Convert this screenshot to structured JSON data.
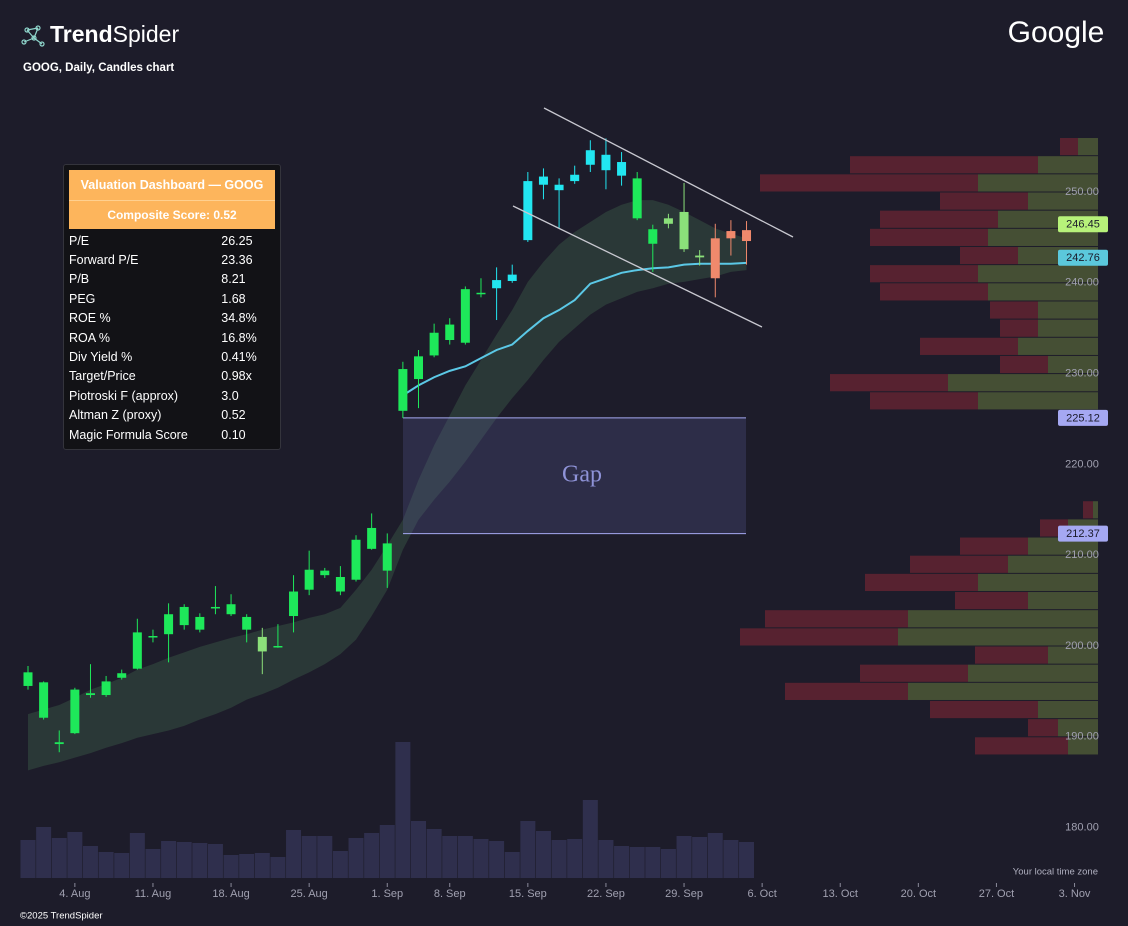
{
  "header": {
    "brand_bold": "Trend",
    "brand_light": "Spider",
    "chart_label": "GOOG, Daily, Candles chart",
    "logo": "Google",
    "copyright": "©2025 TrendSpider",
    "timezone_note": "Your local time zone"
  },
  "dashboard": {
    "title": "Valuation Dashboard — GOOG",
    "subtitle": "Composite Score: 0.52",
    "rows": [
      [
        "P/E",
        "26.25"
      ],
      [
        "Forward P/E",
        "23.36"
      ],
      [
        "P/B",
        "8.21"
      ],
      [
        "PEG",
        "1.68"
      ],
      [
        "ROE %",
        "34.8%"
      ],
      [
        "ROA %",
        "16.8%"
      ],
      [
        "Div Yield %",
        "0.41%"
      ],
      [
        "Target/Price",
        "0.98x"
      ],
      [
        "Piotroski F (approx)",
        "3.0"
      ],
      [
        "Altman Z (proxy)",
        "0.52"
      ],
      [
        "Magic Formula Score",
        "0.10"
      ]
    ]
  },
  "chart_data": {
    "type": "candlestick",
    "categories": [
      null,
      null,
      null,
      "4. Aug",
      null,
      null,
      null,
      null,
      "11. Aug",
      null,
      null,
      null,
      null,
      "18. Aug",
      null,
      null,
      null,
      null,
      "25. Aug",
      null,
      null,
      null,
      null,
      "1. Sep",
      null,
      null,
      null,
      "8. Sep",
      null,
      null,
      null,
      null,
      "15. Sep",
      null,
      null,
      null,
      null,
      "22. Sep",
      null,
      null,
      null,
      null,
      "29. Sep",
      null,
      null,
      null,
      null,
      "6. Oct",
      null,
      null,
      null,
      null,
      "13. Oct",
      null,
      null,
      null,
      null,
      "20. Oct",
      null,
      null,
      null,
      null,
      "27. Oct",
      null,
      null,
      null,
      null,
      "3. Nov"
    ],
    "open": [
      195.6,
      196.0,
      189.4,
      190.4,
      194.6,
      194.6,
      196.5,
      197.5,
      201.0,
      201.3,
      202.3,
      203.2,
      204.2,
      203.5,
      203.2,
      199.4,
      199.9,
      203.3,
      206.2,
      207.8,
      206.0,
      207.3,
      210.7,
      208.3,
      225.9,
      229.4,
      232.0,
      233.7,
      233.4,
      238.8,
      239.4,
      240.2,
      244.7,
      250.8,
      250.2,
      251.2,
      253.0,
      254.1,
      253.3,
      251.5,
      244.3,
      246.5,
      243.7,
      242.8,
      244.9,
      245.7,
      245.8,
      null,
      null,
      null,
      null,
      null,
      null,
      null,
      null,
      null,
      null,
      null,
      null,
      null,
      null,
      null,
      null,
      null,
      null,
      null,
      null,
      null
    ],
    "high": [
      197.8,
      196.1,
      190.7,
      195.4,
      198.0,
      196.7,
      197.4,
      203.0,
      201.8,
      204.7,
      204.6,
      203.6,
      206.6,
      205.7,
      203.5,
      202.0,
      202.4,
      207.8,
      210.5,
      208.6,
      208.8,
      212.2,
      214.6,
      212.4,
      231.3,
      232.6,
      235.5,
      236.1,
      239.6,
      240.5,
      241.7,
      242.0,
      252.2,
      252.6,
      251.5,
      252.9,
      255.7,
      255.9,
      254.4,
      252.2,
      246.4,
      247.6,
      251.0,
      243.6,
      246.5,
      246.9,
      246.8,
      null,
      null,
      null,
      null,
      null,
      null,
      null,
      null,
      null,
      null,
      null,
      null,
      null,
      null,
      null,
      null,
      null,
      null,
      null,
      null,
      null
    ],
    "low": [
      195.2,
      191.9,
      188.3,
      190.3,
      194.3,
      194.4,
      196.3,
      197.4,
      200.4,
      198.2,
      201.8,
      201.5,
      203.5,
      203.3,
      200.4,
      196.9,
      199.8,
      201.5,
      205.6,
      207.5,
      205.6,
      207.1,
      210.6,
      206.4,
      225.1,
      226.2,
      231.8,
      233.2,
      233.2,
      238.4,
      235.9,
      240.0,
      244.5,
      249.2,
      246.0,
      250.9,
      252.2,
      250.3,
      250.7,
      246.9,
      241.2,
      246.0,
      243.4,
      241.9,
      238.4,
      243.0,
      242.0,
      null,
      null,
      null,
      null,
      null,
      null,
      null,
      null,
      null,
      null,
      null,
      null,
      null,
      null,
      null,
      null,
      null,
      null,
      null,
      null,
      null
    ],
    "close": [
      197.1,
      192.1,
      189.2,
      195.2,
      194.8,
      196.1,
      197.0,
      201.5,
      201.1,
      203.5,
      204.3,
      201.8,
      204.3,
      204.6,
      201.8,
      201.0,
      200.0,
      206.0,
      208.4,
      208.3,
      207.6,
      211.7,
      213.0,
      211.3,
      230.5,
      231.9,
      234.5,
      235.4,
      239.3,
      238.9,
      240.3,
      240.9,
      251.2,
      251.7,
      250.8,
      251.9,
      254.6,
      252.4,
      251.8,
      247.1,
      245.9,
      247.1,
      247.8,
      243.0,
      240.5,
      244.9,
      244.6,
      null,
      null,
      null,
      null,
      null,
      null,
      null,
      null,
      null,
      null,
      null,
      null,
      null,
      null,
      null,
      null,
      null,
      null,
      null,
      null,
      null
    ],
    "colors": [
      "#1ee85a",
      "#1ee85a",
      "#1ee85a",
      "#1ee85a",
      "#1ee85a",
      "#1ee85a",
      "#1ee85a",
      "#1ee85a",
      "#1ee85a",
      "#1ee85a",
      "#1ee85a",
      "#1ee85a",
      "#1ee85a",
      "#1ee85a",
      "#1ee85a",
      "#8be07a",
      "#1ee85a",
      "#1ee85a",
      "#1ee85a",
      "#1ee85a",
      "#1ee85a",
      "#1ee85a",
      "#1ee85a",
      "#1ee85a",
      "#1ee85a",
      "#1ee85a",
      "#1ee85a",
      "#1ee85a",
      "#1ee85a",
      "#1ee85a",
      "#22e6f0",
      "#22e6f0",
      "#22e6f0",
      "#22e6f0",
      "#22e6f0",
      "#22e6f0",
      "#22e6f0",
      "#22e6f0",
      "#22e6f0",
      "#1ee85a",
      "#1ee85a",
      "#8be07a",
      "#8be07a",
      "#8be07a",
      "#f0896c",
      "#f0896c",
      "#f0896c",
      null,
      null,
      null,
      null,
      null,
      null,
      null,
      null,
      null,
      null,
      null,
      null,
      null,
      null,
      null,
      null,
      null,
      null,
      null,
      null,
      null
    ],
    "volume": [
      38,
      51,
      40,
      46,
      32,
      26,
      25,
      45,
      29,
      37,
      36,
      35,
      34,
      23,
      24,
      25,
      21,
      48,
      42,
      42,
      27,
      40,
      45,
      53,
      136,
      57,
      49,
      42,
      42,
      39,
      37,
      26,
      57,
      47,
      38,
      39,
      78,
      38,
      32,
      31,
      31,
      29,
      42,
      41,
      45,
      38,
      36,
      null,
      null,
      null,
      null,
      null,
      null,
      null,
      null,
      null,
      null,
      null,
      null,
      null,
      null,
      null,
      null,
      null,
      null,
      null,
      null,
      null
    ],
    "volume_color": "#2f2f4d",
    "vlim": [
      0,
      150
    ],
    "ma": [
      null,
      null,
      null,
      null,
      null,
      null,
      null,
      null,
      null,
      null,
      null,
      null,
      null,
      null,
      null,
      null,
      null,
      null,
      null,
      null,
      null,
      null,
      null,
      null,
      227.6,
      228.7,
      229.6,
      230.3,
      230.8,
      231.7,
      232.6,
      233.2,
      234.7,
      236.1,
      237.0,
      238.1,
      239.9,
      240.5,
      241.1,
      241.4,
      241.6,
      241.7,
      242.0,
      242.1,
      242.1,
      242.1,
      242.2,
      null,
      null,
      null,
      null,
      null,
      null,
      null,
      null,
      null,
      null,
      null,
      null,
      null,
      null,
      null,
      null,
      null,
      null,
      null,
      null,
      null
    ],
    "ma_color": "#5bc8e6",
    "band_upper": [
      192.5,
      193.0,
      193.5,
      194.3,
      195.2,
      195.8,
      196.5,
      197.4,
      198.0,
      198.7,
      199.3,
      199.9,
      200.4,
      200.9,
      201.3,
      201.8,
      202.2,
      202.6,
      203.1,
      203.5,
      204.2,
      206.2,
      208.4,
      211.1,
      213.9,
      218.3,
      222.1,
      225.4,
      228.7,
      231.5,
      234.3,
      237.0,
      240.1,
      242.3,
      244.2,
      245.6,
      246.7,
      247.8,
      248.6,
      249.1,
      249.1,
      248.6,
      247.8,
      246.9,
      246.0,
      245.4,
      244.9,
      null,
      null,
      null,
      null,
      null,
      null,
      null,
      null,
      null,
      null,
      null,
      null,
      null,
      null,
      null,
      null,
      null,
      null,
      null,
      null,
      null
    ],
    "band_lower": [
      186.3,
      186.8,
      187.2,
      187.7,
      188.2,
      188.8,
      189.3,
      189.9,
      190.3,
      190.7,
      191.2,
      191.9,
      192.5,
      193.2,
      194.1,
      194.7,
      195.4,
      196.3,
      197.1,
      198.0,
      199.1,
      200.7,
      203.3,
      206.2,
      210.6,
      213.9,
      216.1,
      218.1,
      220.3,
      222.7,
      225.1,
      227.3,
      229.3,
      231.5,
      233.5,
      235.0,
      236.5,
      237.6,
      238.3,
      239.0,
      239.4,
      239.9,
      240.1,
      240.4,
      240.7,
      241.2,
      241.4,
      null,
      null,
      null,
      null,
      null,
      null,
      null,
      null,
      null,
      null,
      null,
      null,
      null,
      null,
      null,
      null,
      null,
      null,
      null,
      null,
      null
    ],
    "band_color": "#3c5a48",
    "ylim": [
      175,
      260
    ],
    "yticks": [
      {
        "value": 180,
        "label": "180.00"
      },
      {
        "value": 190,
        "label": "190.00"
      },
      {
        "value": 200,
        "label": "200.00"
      },
      {
        "value": 210,
        "label": "210.00"
      },
      {
        "value": 220,
        "label": "220.00"
      },
      {
        "value": 230,
        "label": "230.00"
      },
      {
        "value": 240,
        "label": "240.00"
      },
      {
        "value": 250,
        "label": "250.00"
      }
    ],
    "price_tags": [
      246.45,
      242.76,
      225.12,
      212.37
    ],
    "price_tag_colors": [
      "#b7f27a",
      "#5bc8dc",
      "#a5a8f2",
      "#a5a8f2"
    ],
    "gap_label": "Gap",
    "profile": {
      "bins": [
        188,
        190,
        192,
        194,
        196,
        198,
        200,
        202,
        204,
        206,
        208,
        210,
        212,
        214,
        216,
        218,
        220,
        222,
        224,
        226,
        228,
        230,
        232,
        234,
        236,
        238,
        240,
        242,
        244,
        246,
        248,
        250,
        252,
        254,
        256
      ],
      "up": [
        30,
        40,
        60,
        190,
        130,
        50,
        200,
        190,
        70,
        120,
        90,
        70,
        30,
        5,
        0,
        0,
        0,
        0,
        0,
        120,
        150,
        50,
        80,
        60,
        60,
        110,
        120,
        80,
        110,
        100,
        70,
        120,
        60,
        20
      ],
      "down": [
        93,
        30,
        108,
        123,
        108,
        73,
        158,
        143,
        73,
        113,
        98,
        68,
        28,
        10,
        0,
        0,
        0,
        0,
        0,
        108,
        118,
        48,
        98,
        38,
        48,
        108,
        108,
        58,
        118,
        118,
        88,
        218,
        188,
        18
      ],
      "up_color": "#4a5535",
      "down_color": "#5e2431",
      "xlim": [
        0,
        360
      ]
    }
  }
}
